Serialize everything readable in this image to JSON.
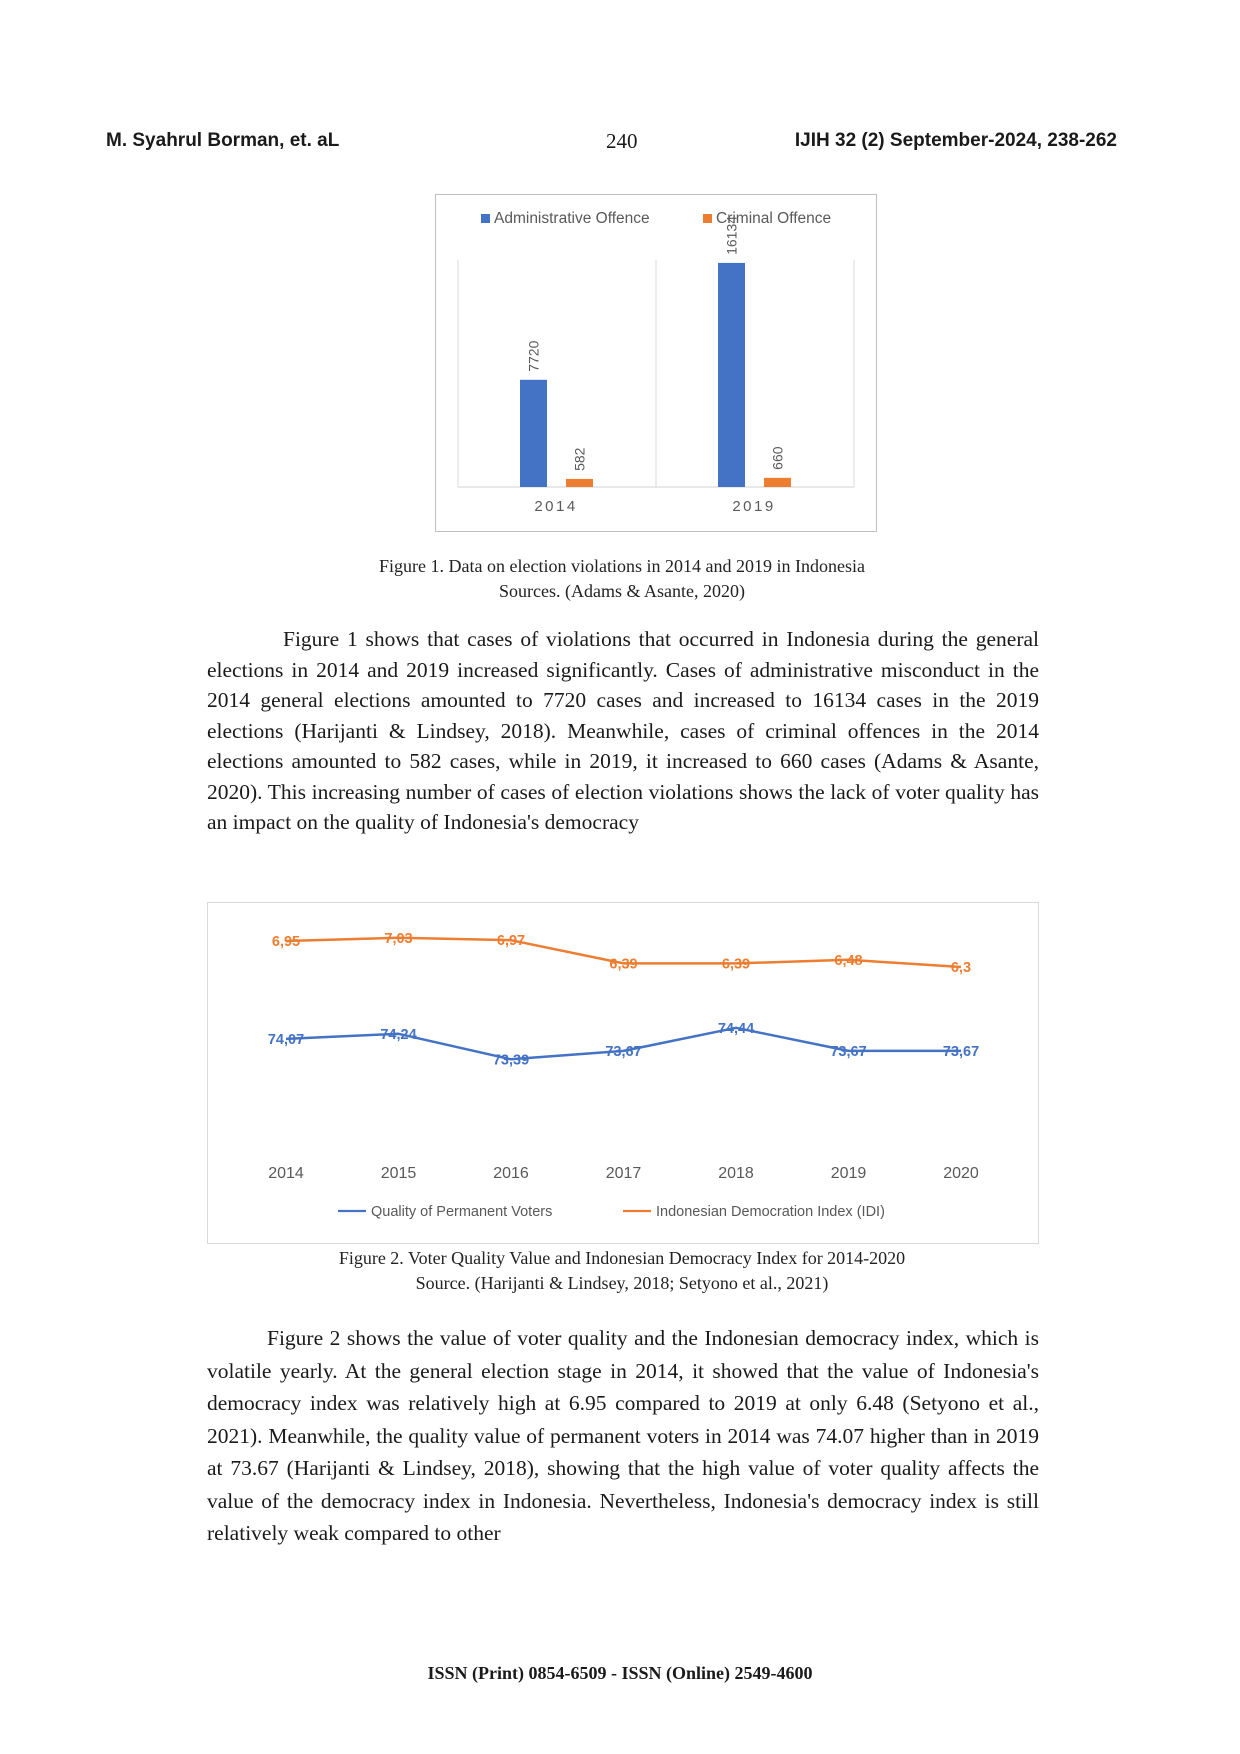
{
  "header": {
    "authors": "M. Syahrul Borman, et. aL",
    "page_number": "240",
    "journal": "IJIH 32 (2) September-2024, 238-262"
  },
  "figure1": {
    "caption_line1": "Figure 1.  Data on election violations in 2014 and 2019 in Indonesia",
    "caption_line2": "Sources. (Adams & Asante, 2020)",
    "chart_data": {
      "type": "bar",
      "categories": [
        "2014",
        "2019"
      ],
      "series": [
        {
          "name": "Administrative Offence",
          "values": [
            7720,
            16134
          ],
          "color": "#4472c4"
        },
        {
          "name": "Criminal Offence",
          "values": [
            582,
            660
          ],
          "color": "#ed7d31"
        }
      ],
      "ylim": [
        0,
        18000
      ],
      "legend": "top",
      "grid": false
    }
  },
  "paragraph1": "Figure 1 shows that cases of violations that occurred in Indonesia during the general elections in 2014 and 2019 increased significantly.  Cases of administrative misconduct in the 2014 general elections amounted to 7720 cases and increased to 16134 cases in the 2019 elections (Harijanti & Lindsey, 2018). Meanwhile, cases of criminal offences in the 2014 elections amounted to 582 cases, while in 2019, it increased to 660 cases (Adams & Asante, 2020). This increasing number of cases of election violations shows the lack of voter quality has an impact on the quality of Indonesia's democracy",
  "figure2": {
    "caption_line1": "Figure 2. Voter Quality Value and Indonesian Democracy Index for 2014-2020",
    "caption_line2": "Source. (Harijanti & Lindsey, 2018; Setyono et al., 2021)",
    "chart_data": {
      "type": "line",
      "categories": [
        "2014",
        "2015",
        "2016",
        "2017",
        "2018",
        "2019",
        "2020"
      ],
      "series": [
        {
          "name": "Quality of Permanent Voters",
          "values": [
            74.07,
            74.24,
            73.39,
            73.67,
            74.44,
            73.67,
            73.67
          ],
          "labels": [
            "74,07",
            "74,24",
            "73,39",
            "73,67",
            "74,44",
            "73,67",
            "73,67"
          ],
          "color": "#4472c4"
        },
        {
          "name": "Indonesian Democration Index (IDI)",
          "values": [
            6.95,
            7.03,
            6.97,
            6.39,
            6.39,
            6.48,
            6.3
          ],
          "labels": [
            "6,95",
            "7,03",
            "6,97",
            "6,39",
            "6,39",
            "6,48",
            "6,3"
          ],
          "color": "#ed7d31"
        }
      ],
      "legend": "bottom",
      "grid": false
    }
  },
  "paragraph2": "Figure 2 shows the value of voter quality and the Indonesian democracy index, which is volatile yearly. At the general election stage in 2014, it showed that the value of Indonesia's democracy index was relatively high at 6.95 compared to 2019 at only 6.48 (Setyono et al., 2021). Meanwhile, the quality value of permanent voters in 2014 was 74.07 higher than in 2019 at 73.67 (Harijanti & Lindsey, 2018), showing that the high value of voter quality affects the value of the democracy index in Indonesia. Nevertheless, Indonesia's democracy index is still relatively weak compared to other",
  "footer": "ISSN (Print) 0854-6509 - ISSN (Online) 2549-4600"
}
